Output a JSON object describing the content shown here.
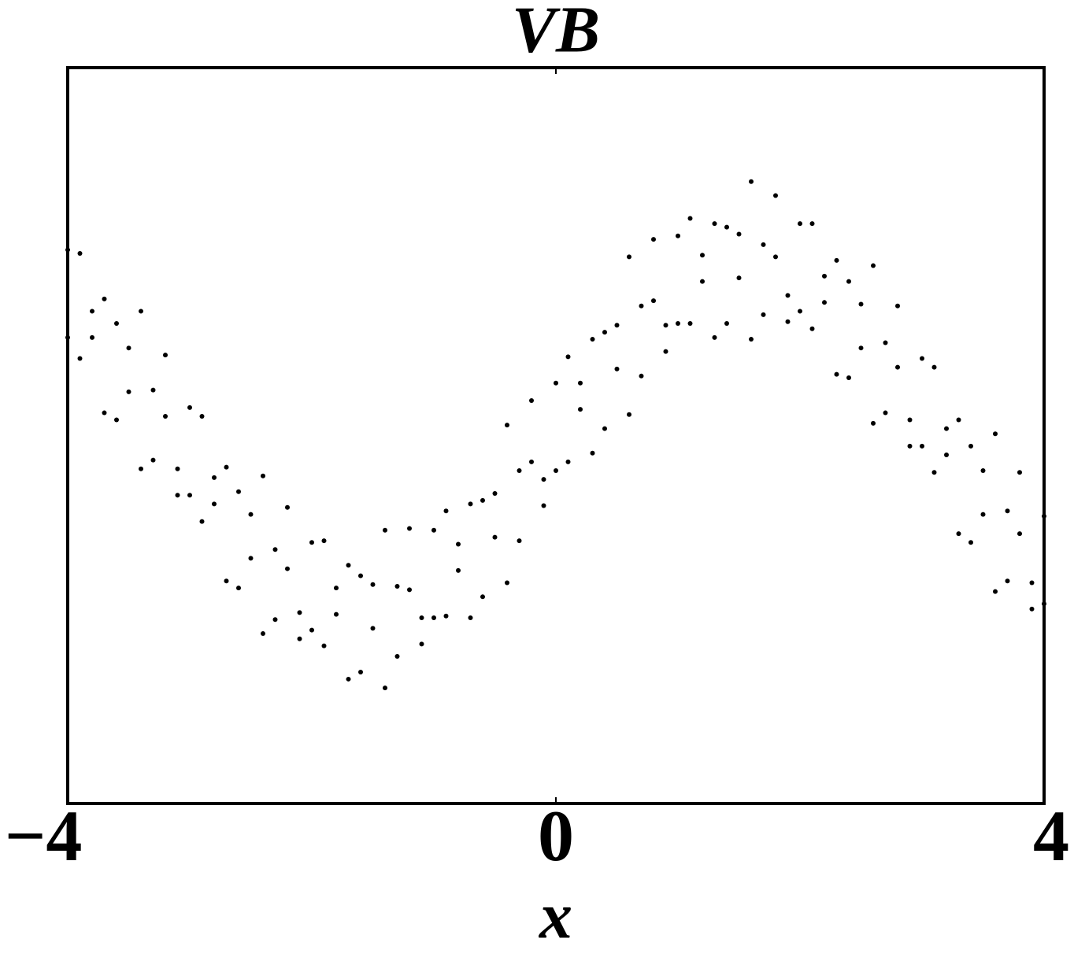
{
  "chart_data": {
    "type": "scatter",
    "title": "VB",
    "xlabel": "x",
    "color": "#000000",
    "xlim": [
      -4,
      4
    ],
    "ylim": [
      -2.1,
      2.1
    ],
    "xticks": [
      {
        "value": -4,
        "label": "−4"
      },
      0,
      4
    ],
    "x": [
      -4,
      -3.9,
      -3.8,
      -3.7,
      -3.6,
      -3.5,
      -3.4,
      -3.3,
      -3.2,
      -3.1,
      -3,
      -2.9,
      -2.8,
      -2.7,
      -2.6,
      -2.5,
      -2.4,
      -2.3,
      -2.2,
      -2.1,
      -2,
      -1.9,
      -1.8,
      -1.7,
      -1.6,
      -1.5,
      -1.4,
      -1.3,
      -1.2,
      -1.1,
      -1,
      -0.9,
      -0.8,
      -0.7,
      -0.6,
      -0.5,
      -0.4,
      -0.3,
      -0.2,
      -0.1,
      0,
      0.1,
      0.2,
      0.3,
      0.4,
      0.5,
      0.6,
      0.7,
      0.8,
      0.9,
      1,
      1.1,
      1.2,
      1.3,
      1.4,
      1.5,
      1.6,
      1.7,
      1.8,
      1.9,
      2,
      2.1,
      2.2,
      2.3,
      2.4,
      2.5,
      2.6,
      2.7,
      2.8,
      2.9,
      3,
      3.1,
      3.2,
      3.3,
      3.4,
      3.5,
      3.6,
      3.7,
      3.8,
      3.9,
      4,
      -4,
      -3.9,
      -3.8,
      -3.7,
      -3.6,
      -3.5,
      -3.4,
      -3.3,
      -3.2,
      -3.1,
      -3,
      -2.9,
      -2.8,
      -2.7,
      -2.6,
      -2.5,
      -2.4,
      -2.3,
      -2.2,
      -2.1,
      -2,
      -1.9,
      -1.8,
      -1.7,
      -1.6,
      -1.5,
      -1.4,
      -1.3,
      -1.2,
      -1.1,
      -1,
      -0.9,
      -0.8,
      -0.7,
      -0.6,
      -0.5,
      -0.4,
      -0.3,
      -0.2,
      -0.1,
      0,
      0.1,
      0.2,
      0.3,
      0.4,
      0.5,
      0.6,
      0.7,
      0.8,
      0.9,
      1,
      1.1,
      1.2,
      1.3,
      1.4,
      1.5,
      1.6,
      1.7,
      1.8,
      1.9,
      2,
      2.1,
      2.2,
      2.3,
      2.4,
      2.5,
      2.6,
      2.7,
      2.8,
      2.9,
      3,
      3.1,
      3.2,
      3.3,
      3.4,
      3.5,
      3.6,
      3.7,
      3.8,
      3.9,
      4
    ],
    "values": [
      1.06,
      0.44,
      0.71,
      0.13,
      0.64,
      0.25,
      0.71,
      -0.14,
      0.11,
      -0.19,
      0.16,
      -0.49,
      -0.24,
      -0.83,
      -0.32,
      -0.7,
      -0.23,
      -1.05,
      -0.76,
      -1.01,
      -0.61,
      -1.2,
      -0.87,
      -1.39,
      -0.8,
      -1.1,
      -0.54,
      -1.26,
      -0.88,
      -1.04,
      -0.54,
      -1.03,
      -0.62,
      -1.04,
      -0.37,
      -0.58,
      0.06,
      -0.6,
      -0.15,
      -0.25,
      0.3,
      -0.15,
      0.3,
      -0.1,
      0.59,
      0.38,
      1.02,
      0.34,
      0.77,
      0.63,
      1.14,
      0.64,
      1.03,
      0.56,
      1.19,
      0.9,
      1.45,
      0.69,
      1.02,
      0.8,
      1.21,
      0.61,
      0.91,
      0.35,
      0.88,
      0.5,
      0.97,
      0.13,
      0.39,
      0.09,
      0.44,
      -0.21,
      0.04,
      -0.56,
      -0.06,
      -0.45,
      0.01,
      -0.83,
      -0.56,
      -0.84,
      -0.46,
      0.56,
      1.04,
      0.56,
      0.78,
      0.09,
      0.5,
      -0.19,
      0.26,
      0.46,
      -0.34,
      -0.34,
      0.11,
      -0.39,
      -0.18,
      -0.87,
      -0.45,
      -1.13,
      -0.65,
      -0.41,
      -1.16,
      -1.11,
      -0.6,
      -1.02,
      -0.74,
      -1.35,
      -0.85,
      -1.44,
      -0.86,
      -0.53,
      -1.19,
      -1.04,
      -0.43,
      -0.77,
      -0.39,
      -0.92,
      -0.33,
      -0.84,
      -0.2,
      0.2,
      -0.4,
      -0.2,
      0.45,
      0.15,
      0.55,
      0.04,
      0.63,
      0.12,
      0.74,
      1.12,
      0.48,
      0.64,
      1.24,
      0.88,
      1.21,
      0.64,
      1.15,
      0.55,
      1.09,
      1.37,
      0.65,
      0.71,
      1.21,
      0.76,
      1,
      0.33,
      0.75,
      0.07,
      0.53,
      0.74,
      -0.06,
      -0.06,
      0.39,
      -0.11,
      0.09,
      -0.61,
      -0.2,
      -0.89,
      -0.43,
      -0.21,
      -0.99,
      -0.96
    ]
  }
}
